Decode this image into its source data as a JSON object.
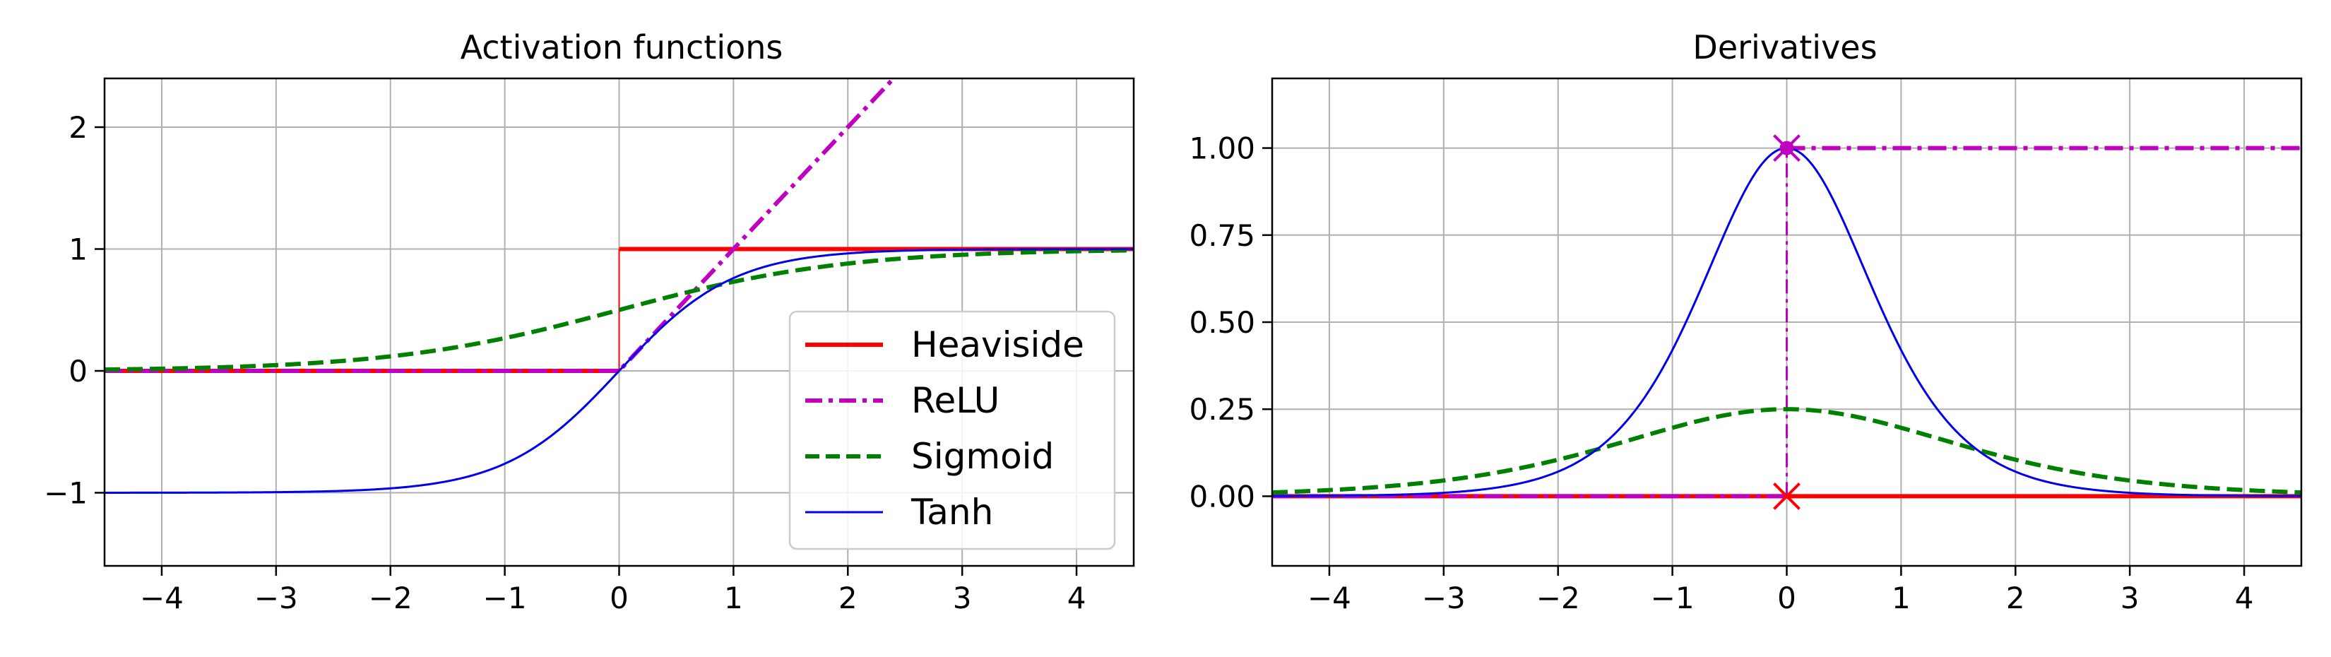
{
  "chart_data": [
    {
      "type": "line",
      "title": "Activation functions",
      "xlim": [
        -4.5,
        4.5
      ],
      "ylim": [
        -1.6,
        2.4
      ],
      "grid": true,
      "legend_position": "lower-right",
      "xticks": [
        -4,
        -3,
        -2,
        -1,
        0,
        1,
        2,
        3,
        4
      ],
      "xtick_labels": [
        "−4",
        "−3",
        "−2",
        "−1",
        "0",
        "1",
        "2",
        "3",
        "4"
      ],
      "yticks": [
        -1,
        0,
        1,
        2
      ],
      "ytick_labels": [
        "−1",
        "0",
        "1",
        "2"
      ],
      "series": [
        {
          "name": "Heaviside",
          "function": "heaviside",
          "color": "#ff0000",
          "style": "solid",
          "width": "thick",
          "x": [
            -4.5,
            0,
            0,
            4.5
          ],
          "y": [
            0,
            0,
            1,
            1
          ]
        },
        {
          "name": "ReLU",
          "function": "relu",
          "color": "#c000c0",
          "style": "dashdot",
          "width": "thick",
          "x": [
            -4.5,
            0,
            2.4
          ],
          "y": [
            0,
            0,
            2.4
          ]
        },
        {
          "name": "Sigmoid",
          "function": "sigmoid",
          "color": "#008000",
          "style": "dashed",
          "width": "thick",
          "x": [
            -4.5,
            -4,
            -3,
            -2,
            -1,
            0,
            1,
            2,
            3,
            4,
            4.5
          ],
          "y": [
            0.011,
            0.018,
            0.047,
            0.119,
            0.269,
            0.5,
            0.731,
            0.881,
            0.953,
            0.982,
            0.989
          ]
        },
        {
          "name": "Tanh",
          "function": "tanh",
          "color": "#0000ee",
          "style": "solid",
          "width": "thin",
          "x": [
            -4.5,
            -4,
            -3,
            -2,
            -1,
            0,
            1,
            2,
            3,
            4,
            4.5
          ],
          "y": [
            -1.0,
            -0.999,
            -0.995,
            -0.964,
            -0.762,
            0,
            0.762,
            0.964,
            0.995,
            0.999,
            1.0
          ]
        }
      ]
    },
    {
      "type": "line",
      "title": "Derivatives",
      "xlim": [
        -4.5,
        4.5
      ],
      "ylim": [
        -0.2,
        1.2
      ],
      "grid": true,
      "xticks": [
        -4,
        -3,
        -2,
        -1,
        0,
        1,
        2,
        3,
        4
      ],
      "xtick_labels": [
        "−4",
        "−3",
        "−2",
        "−1",
        "0",
        "1",
        "2",
        "3",
        "4"
      ],
      "yticks": [
        0,
        0.25,
        0.5,
        0.75,
        1.0
      ],
      "ytick_labels": [
        "0.00",
        "0.25",
        "0.50",
        "0.75",
        "1.00"
      ],
      "series": [
        {
          "function": "heaviside_derivative",
          "color": "#ff0000",
          "style": "solid",
          "width": "thick",
          "x": [
            -4.5,
            4.5
          ],
          "y": [
            0,
            0
          ],
          "markers": [
            {
              "x": 0,
              "y": 0,
              "symbol": "x"
            }
          ]
        },
        {
          "function": "relu_derivative",
          "color": "#c000c0",
          "style": "dashdot",
          "width": "thick",
          "x": [
            -4.5,
            0,
            0,
            4.5
          ],
          "y": [
            0,
            0,
            1,
            1
          ],
          "markers": [
            {
              "x": 0,
              "y": 1,
              "symbol": "x"
            },
            {
              "x": 0,
              "y": 1,
              "symbol": "dot"
            }
          ]
        },
        {
          "function": "sigmoid_derivative",
          "color": "#008000",
          "style": "dashed",
          "width": "thick",
          "x": [
            -4.5,
            -4,
            -3,
            -2,
            -1,
            0,
            1,
            2,
            3,
            4,
            4.5
          ],
          "y": [
            0.011,
            0.018,
            0.045,
            0.105,
            0.197,
            0.25,
            0.197,
            0.105,
            0.045,
            0.018,
            0.011
          ]
        },
        {
          "function": "tanh_derivative",
          "color": "#0000ee",
          "style": "solid",
          "width": "thin",
          "x": [
            -4.5,
            -4,
            -3,
            -2,
            -1,
            0,
            1,
            2,
            3,
            4,
            4.5
          ],
          "y": [
            0.0005,
            0.0013,
            0.0099,
            0.0707,
            0.42,
            1.0,
            0.42,
            0.0707,
            0.0099,
            0.0013,
            0.0005
          ]
        }
      ]
    }
  ]
}
